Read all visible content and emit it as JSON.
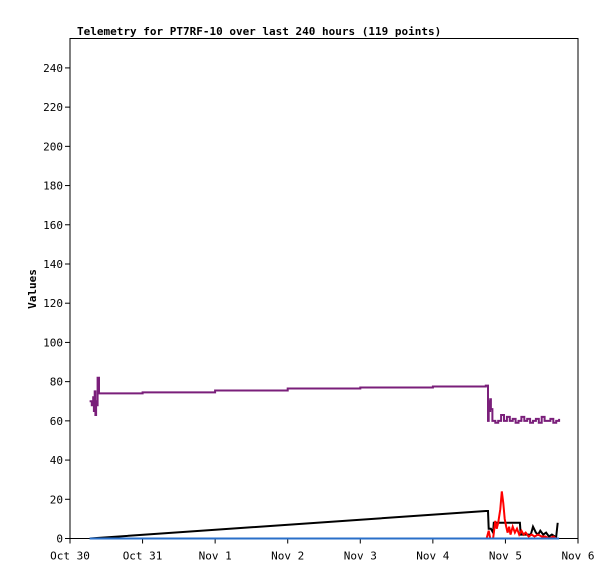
{
  "chart_data": {
    "type": "line",
    "title": "Telemetry for PT7RF-10 over last 240 hours (119 points)",
    "xlabel": "",
    "ylabel": "Values",
    "ylim": [
      0,
      255
    ],
    "xlim": [
      0,
      7
    ],
    "x_ticks": [
      {
        "value": 0,
        "label": "Oct 30"
      },
      {
        "value": 1,
        "label": "Oct 31"
      },
      {
        "value": 2,
        "label": "Nov 1"
      },
      {
        "value": 3,
        "label": "Nov 2"
      },
      {
        "value": 4,
        "label": "Nov 3"
      },
      {
        "value": 5,
        "label": "Nov 4"
      },
      {
        "value": 6,
        "label": "Nov 5"
      },
      {
        "value": 7,
        "label": "Nov 6"
      }
    ],
    "y_ticks": [
      0,
      20,
      40,
      60,
      80,
      100,
      120,
      140,
      160,
      180,
      200,
      220,
      240
    ],
    "grid": false,
    "series": [
      {
        "color": "#7a1f7a",
        "step": true,
        "points": [
          [
            0.27,
            70
          ],
          [
            0.3,
            68
          ],
          [
            0.32,
            72
          ],
          [
            0.33,
            65
          ],
          [
            0.34,
            75
          ],
          [
            0.35,
            63
          ],
          [
            0.36,
            70
          ],
          [
            0.37,
            68
          ],
          [
            0.38,
            82
          ],
          [
            0.4,
            74
          ],
          [
            1.0,
            74.5
          ],
          [
            2.0,
            75.5
          ],
          [
            3.0,
            76.5
          ],
          [
            4.0,
            77
          ],
          [
            5.0,
            77.5
          ],
          [
            5.73,
            78
          ],
          [
            5.76,
            60
          ],
          [
            5.77,
            70
          ],
          [
            5.78,
            65
          ],
          [
            5.79,
            71
          ],
          [
            5.8,
            66
          ],
          [
            5.82,
            60
          ],
          [
            5.86,
            59
          ],
          [
            5.9,
            60
          ],
          [
            5.94,
            63
          ],
          [
            5.98,
            60
          ],
          [
            6.02,
            62
          ],
          [
            6.06,
            60
          ],
          [
            6.1,
            61
          ],
          [
            6.14,
            59
          ],
          [
            6.18,
            60
          ],
          [
            6.22,
            62
          ],
          [
            6.26,
            60
          ],
          [
            6.3,
            61
          ],
          [
            6.34,
            59
          ],
          [
            6.38,
            60
          ],
          [
            6.42,
            61
          ],
          [
            6.46,
            59
          ],
          [
            6.5,
            62
          ],
          [
            6.54,
            60
          ],
          [
            6.58,
            60
          ],
          [
            6.62,
            61
          ],
          [
            6.66,
            59
          ],
          [
            6.7,
            60
          ],
          [
            6.74,
            61
          ]
        ]
      },
      {
        "color": "#000000",
        "step": false,
        "points": [
          [
            0.27,
            0
          ],
          [
            5.73,
            14
          ],
          [
            5.76,
            14
          ],
          [
            5.77,
            5
          ],
          [
            5.8,
            5
          ],
          [
            5.83,
            3
          ],
          [
            5.84,
            8
          ],
          [
            5.9,
            8
          ],
          [
            6.2,
            8
          ],
          [
            6.21,
            2
          ],
          [
            6.35,
            2
          ],
          [
            6.38,
            6
          ],
          [
            6.42,
            3
          ],
          [
            6.45,
            2
          ],
          [
            6.48,
            4
          ],
          [
            6.52,
            2
          ],
          [
            6.56,
            3
          ],
          [
            6.6,
            1
          ],
          [
            6.64,
            2
          ],
          [
            6.68,
            1
          ],
          [
            6.7,
            1
          ],
          [
            6.72,
            8
          ]
        ]
      },
      {
        "color": "#ff0000",
        "step": false,
        "points": [
          [
            5.74,
            0
          ],
          [
            5.77,
            4
          ],
          [
            5.79,
            0
          ],
          [
            5.83,
            0
          ],
          [
            5.86,
            9
          ],
          [
            5.88,
            5
          ],
          [
            5.9,
            8
          ],
          [
            5.93,
            15
          ],
          [
            5.95,
            24
          ],
          [
            5.97,
            18
          ],
          [
            5.99,
            10
          ],
          [
            6.01,
            6
          ],
          [
            6.03,
            3
          ],
          [
            6.05,
            6
          ],
          [
            6.07,
            2
          ],
          [
            6.1,
            6
          ],
          [
            6.13,
            3
          ],
          [
            6.16,
            5
          ],
          [
            6.19,
            2
          ],
          [
            6.22,
            4
          ],
          [
            6.25,
            2
          ],
          [
            6.28,
            3
          ],
          [
            6.32,
            1
          ],
          [
            6.36,
            2
          ],
          [
            6.4,
            1
          ],
          [
            6.45,
            2
          ],
          [
            6.5,
            1
          ],
          [
            6.55,
            1
          ],
          [
            6.6,
            0
          ],
          [
            6.66,
            1
          ],
          [
            6.7,
            0
          ]
        ]
      },
      {
        "color": "#2a6fc9",
        "step": false,
        "points": [
          [
            0.27,
            0
          ],
          [
            6.74,
            0
          ]
        ]
      }
    ]
  }
}
